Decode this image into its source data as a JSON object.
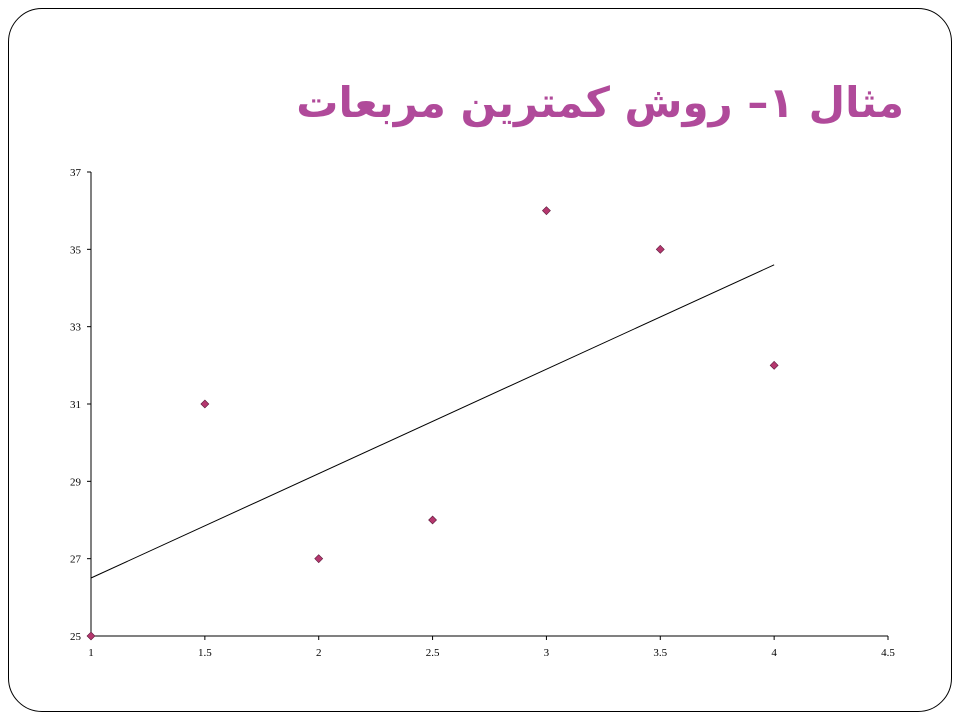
{
  "slide": {
    "title": "مثال ۱– روش کمترین مربعات",
    "title_color": "#b04a9a",
    "border_color": "#000000"
  },
  "chart_data": {
    "type": "scatter",
    "title": "",
    "xlabel": "",
    "ylabel": "",
    "xlim": [
      1,
      4.5
    ],
    "ylim": [
      25,
      37
    ],
    "x_ticks": [
      "1",
      "1.5",
      "2",
      "2.5",
      "3",
      "3.5",
      "4",
      "4.5"
    ],
    "y_ticks": [
      "25",
      "27",
      "29",
      "31",
      "33",
      "35",
      "37"
    ],
    "grid": false,
    "legend": "none",
    "series": [
      {
        "x": [
          1,
          1.5,
          2,
          2.5,
          3,
          3.5,
          4
        ],
        "y": [
          25,
          31,
          27,
          28,
          36,
          35,
          32
        ],
        "marker": "diamond",
        "color": "#b5376e"
      }
    ],
    "trendline": {
      "x": [
        1,
        4
      ],
      "y": [
        26.5,
        34.6
      ],
      "color": "#000000"
    }
  }
}
